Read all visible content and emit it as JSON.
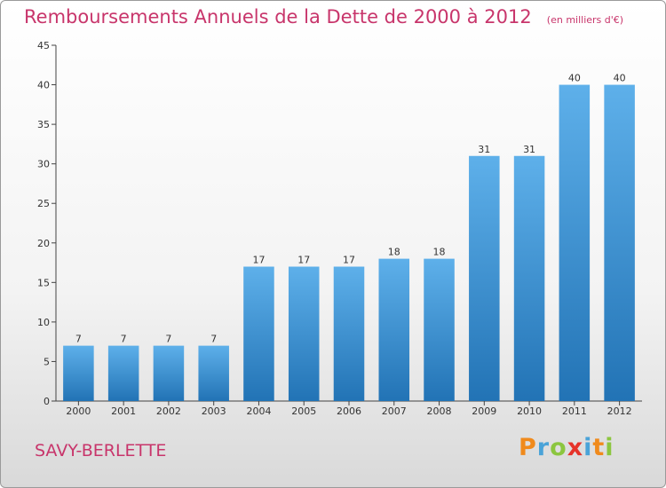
{
  "title": "Remboursements Annuels de la Dette de 2000 à 2012",
  "unit_note": "(en milliers d'€)",
  "place": "SAVY-BERLETTE",
  "logo": {
    "text": "Proxiti",
    "letter_colors": [
      "#f08a1c",
      "#4aa3d8",
      "#8cc63f",
      "#e6332a",
      "#4aa3d8",
      "#f08a1c",
      "#8cc63f"
    ]
  },
  "colors": {
    "title": "#c8356b",
    "bar_top": "#5eb0ea",
    "bar_bottom": "#2273b5"
  },
  "chart_data": {
    "type": "bar",
    "categories": [
      "2000",
      "2001",
      "2002",
      "2003",
      "2004",
      "2005",
      "2006",
      "2007",
      "2008",
      "2009",
      "2010",
      "2011",
      "2012"
    ],
    "values": [
      7,
      7,
      7,
      7,
      17,
      17,
      17,
      18,
      18,
      31,
      31,
      40,
      40
    ],
    "ylim": [
      0,
      45
    ],
    "yticks": [
      0,
      5,
      10,
      15,
      20,
      25,
      30,
      35,
      40,
      45
    ],
    "grid": false,
    "xlabel": "",
    "ylabel": ""
  }
}
